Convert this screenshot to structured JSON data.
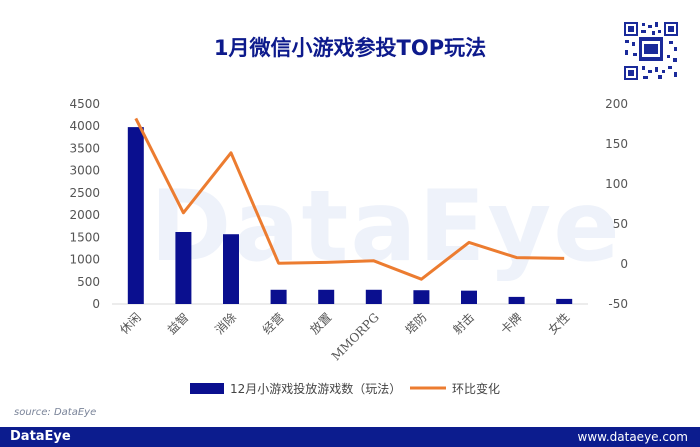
{
  "title": "1月微信小游戏参投TOP玩法",
  "source": "source: DataEye",
  "footer": {
    "brand": "DataEye",
    "url": "www.dataeye.com"
  },
  "watermark": "DataEye",
  "colors": {
    "bar": "#0a0f8f",
    "line": "#ec7c30",
    "title": "#0d1a8c",
    "footer": "#0c1c8e"
  },
  "chart_data": {
    "type": "bar",
    "categories": [
      "休闲",
      "益智",
      "消除",
      "经营",
      "放置",
      "MMORPG",
      "塔防",
      "射击",
      "卡牌",
      "女性"
    ],
    "series": [
      {
        "name": "12月小游戏投放游戏数（玩法）",
        "type": "bar",
        "axis": "left",
        "values": [
          3980,
          1620,
          1570,
          320,
          320,
          320,
          310,
          300,
          160,
          115
        ]
      },
      {
        "name": "环比变化",
        "type": "line",
        "axis": "right",
        "values": [
          182,
          64,
          139,
          1,
          2,
          4,
          -19,
          27,
          8,
          7
        ]
      }
    ],
    "y_left": {
      "min": 0,
      "max": 4500,
      "ticks": [
        0,
        500,
        1000,
        1500,
        2000,
        2500,
        3000,
        3500,
        4000,
        4500
      ]
    },
    "y_right": {
      "min": -50,
      "max": 200,
      "ticks": [
        -50,
        0,
        50,
        100,
        150,
        200
      ]
    },
    "legend_position": "bottom",
    "grid": false
  }
}
